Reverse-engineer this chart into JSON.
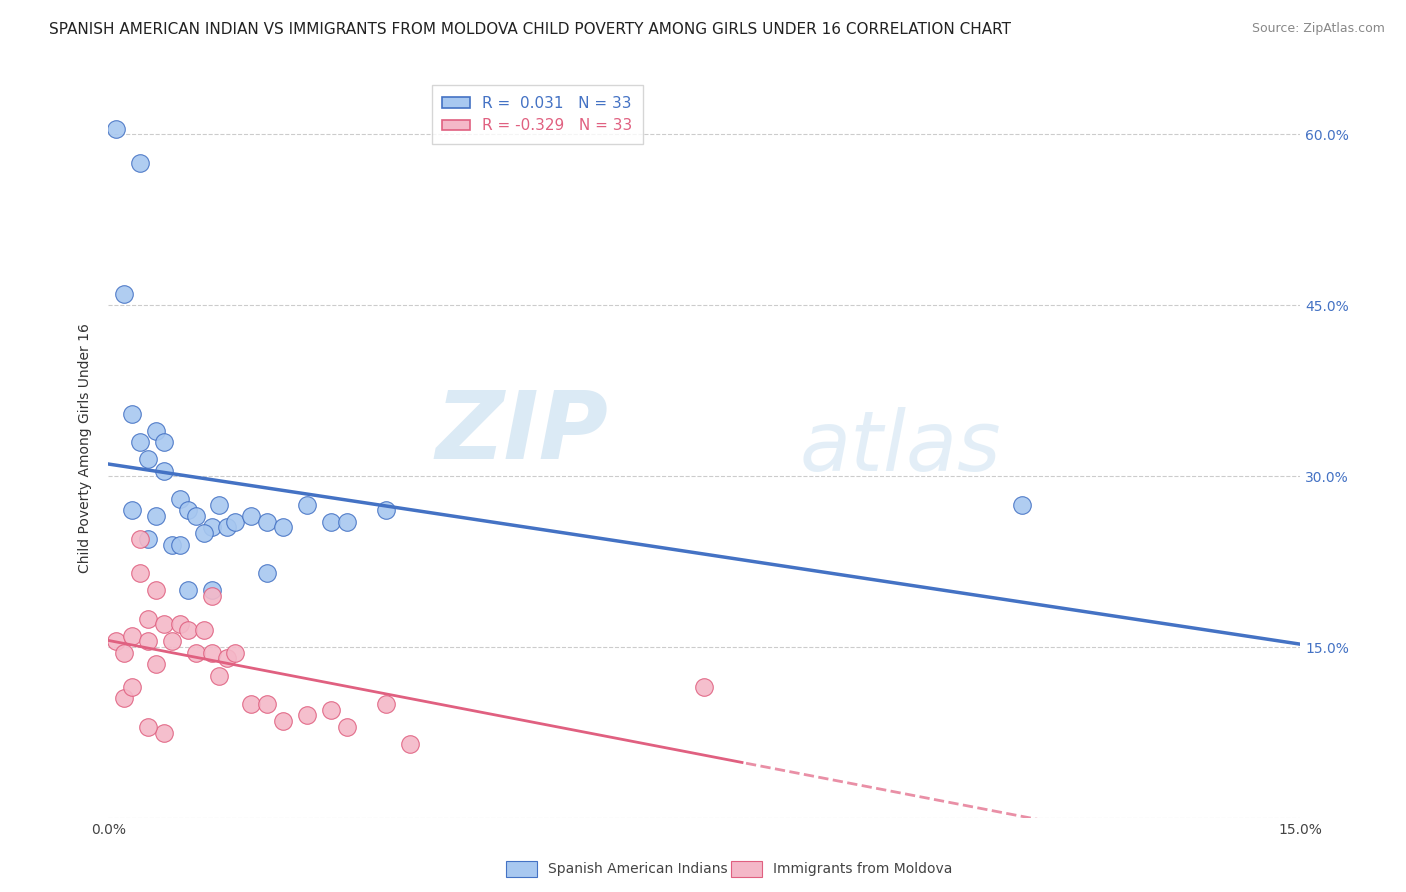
{
  "title": "SPANISH AMERICAN INDIAN VS IMMIGRANTS FROM MOLDOVA CHILD POVERTY AMONG GIRLS UNDER 16 CORRELATION CHART",
  "source": "Source: ZipAtlas.com",
  "ylabel": "Child Poverty Among Girls Under 16",
  "xlim": [
    0.0,
    0.15
  ],
  "ylim": [
    0.0,
    0.65
  ],
  "series1_name": "Spanish American Indians",
  "series2_name": "Immigrants from Moldova",
  "series1_color": "#a8c8f0",
  "series2_color": "#f4b8c8",
  "series1_line_color": "#4472c4",
  "series2_line_color": "#e06080",
  "r1": 0.031,
  "n1": 33,
  "r2": -0.329,
  "n2": 33,
  "series1_x": [
    0.001,
    0.004,
    0.002,
    0.003,
    0.004,
    0.005,
    0.006,
    0.007,
    0.007,
    0.009,
    0.01,
    0.011,
    0.013,
    0.014,
    0.015,
    0.016,
    0.018,
    0.02,
    0.022,
    0.025,
    0.028,
    0.03,
    0.035,
    0.02,
    0.013,
    0.008,
    0.006,
    0.003,
    0.005,
    0.009,
    0.012,
    0.115,
    0.01
  ],
  "series1_y": [
    0.605,
    0.575,
    0.46,
    0.355,
    0.33,
    0.315,
    0.34,
    0.33,
    0.305,
    0.28,
    0.27,
    0.265,
    0.255,
    0.275,
    0.255,
    0.26,
    0.265,
    0.26,
    0.255,
    0.275,
    0.26,
    0.26,
    0.27,
    0.215,
    0.2,
    0.24,
    0.265,
    0.27,
    0.245,
    0.24,
    0.25,
    0.275,
    0.2
  ],
  "series2_x": [
    0.001,
    0.002,
    0.003,
    0.004,
    0.004,
    0.005,
    0.005,
    0.006,
    0.006,
    0.007,
    0.008,
    0.009,
    0.01,
    0.011,
    0.012,
    0.013,
    0.013,
    0.014,
    0.015,
    0.016,
    0.018,
    0.02,
    0.022,
    0.025,
    0.028,
    0.03,
    0.035,
    0.038,
    0.002,
    0.003,
    0.007,
    0.075,
    0.005
  ],
  "series2_y": [
    0.155,
    0.145,
    0.16,
    0.215,
    0.245,
    0.155,
    0.175,
    0.2,
    0.135,
    0.17,
    0.155,
    0.17,
    0.165,
    0.145,
    0.165,
    0.145,
    0.195,
    0.125,
    0.14,
    0.145,
    0.1,
    0.1,
    0.085,
    0.09,
    0.095,
    0.08,
    0.1,
    0.065,
    0.105,
    0.115,
    0.075,
    0.115,
    0.08
  ],
  "watermark_zip": "ZIP",
  "watermark_atlas": "atlas",
  "background_color": "#ffffff",
  "grid_color": "#cccccc",
  "title_fontsize": 11,
  "legend_fontsize": 11
}
